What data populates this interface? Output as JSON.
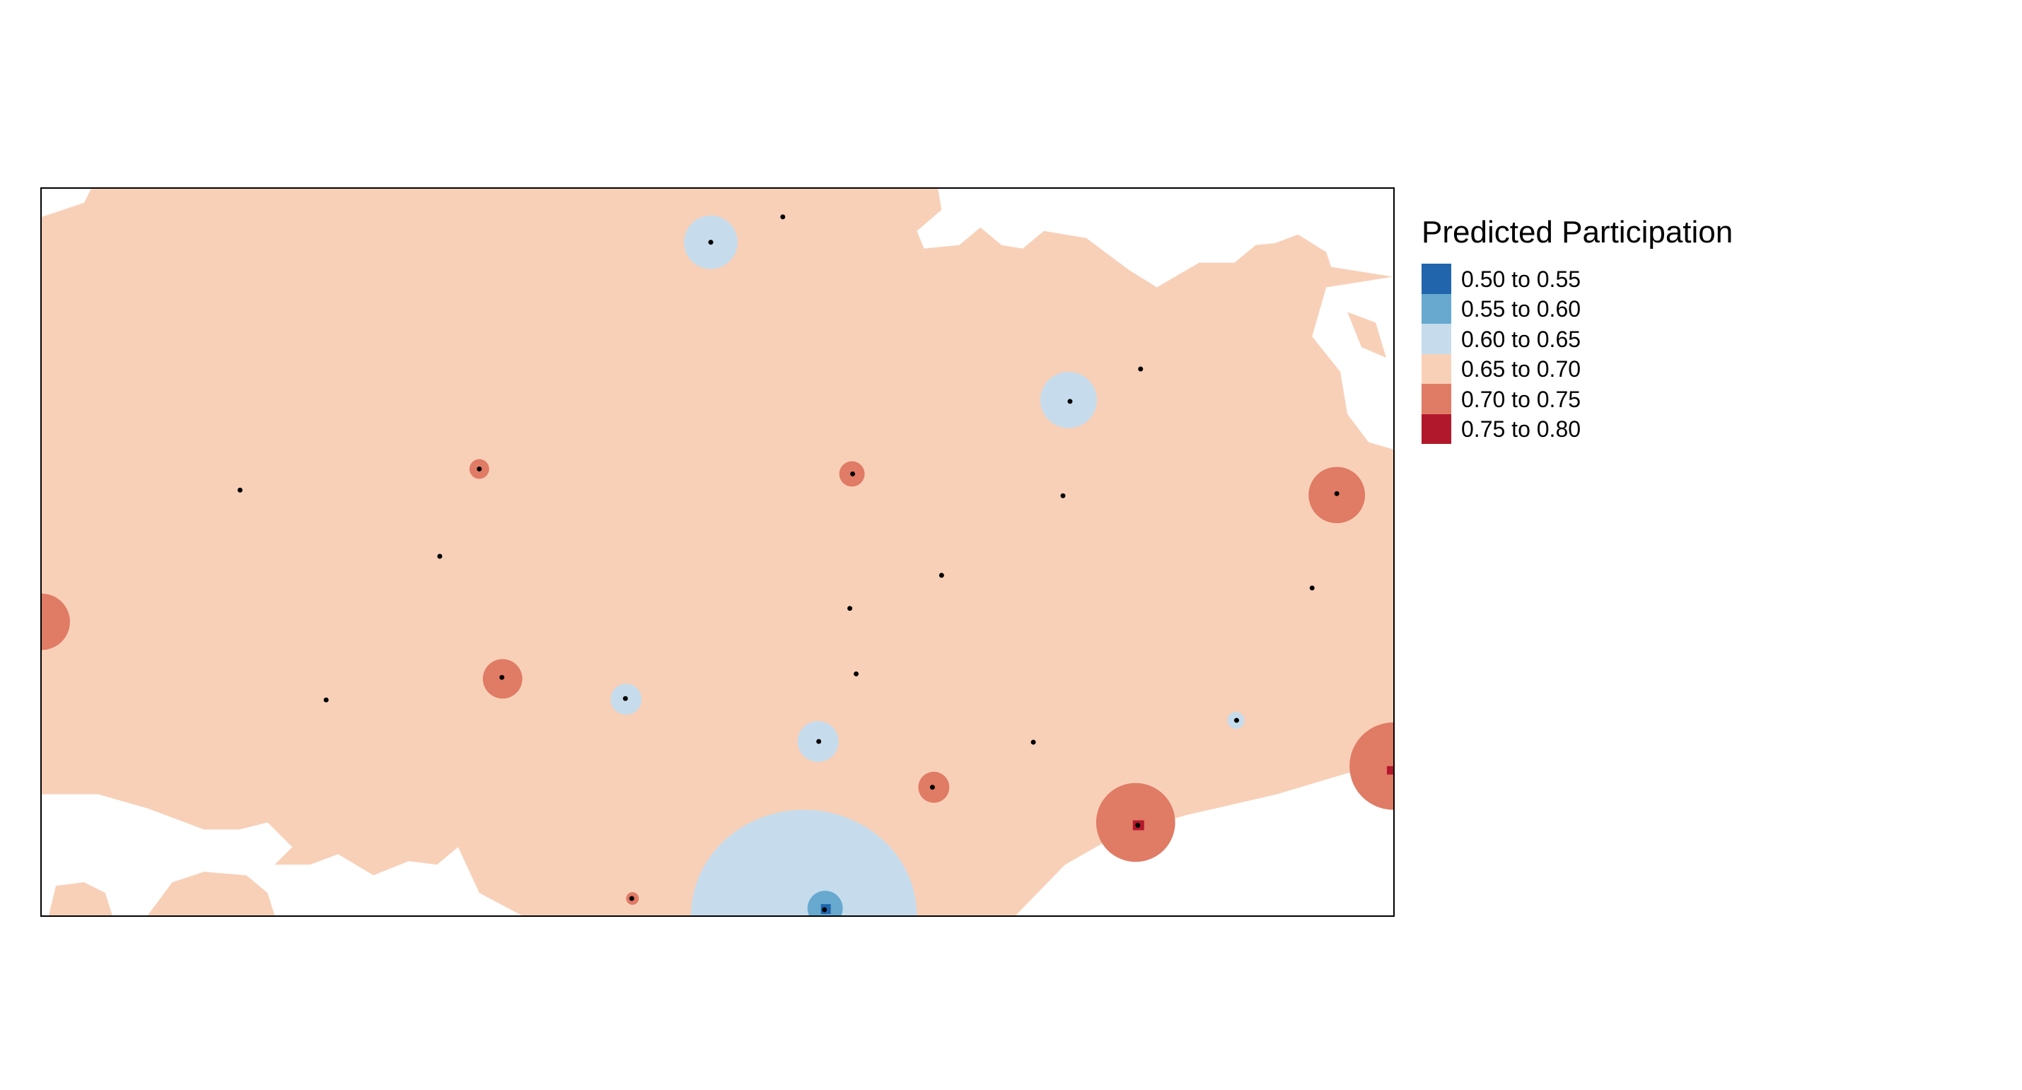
{
  "legend": {
    "title": "Predicted Participation",
    "items": [
      {
        "label": "0.50 to 0.55",
        "color": "#2166ac"
      },
      {
        "label": "0.55 to 0.60",
        "color": "#67a9cf"
      },
      {
        "label": "0.60 to 0.65",
        "color": "#c6dcec"
      },
      {
        "label": "0.65 to 0.70",
        "color": "#f8d0b8"
      },
      {
        "label": "0.70 to 0.75",
        "color": "#e07b65"
      },
      {
        "label": "0.75 to 0.80",
        "color": "#b2182b"
      }
    ]
  }
}
